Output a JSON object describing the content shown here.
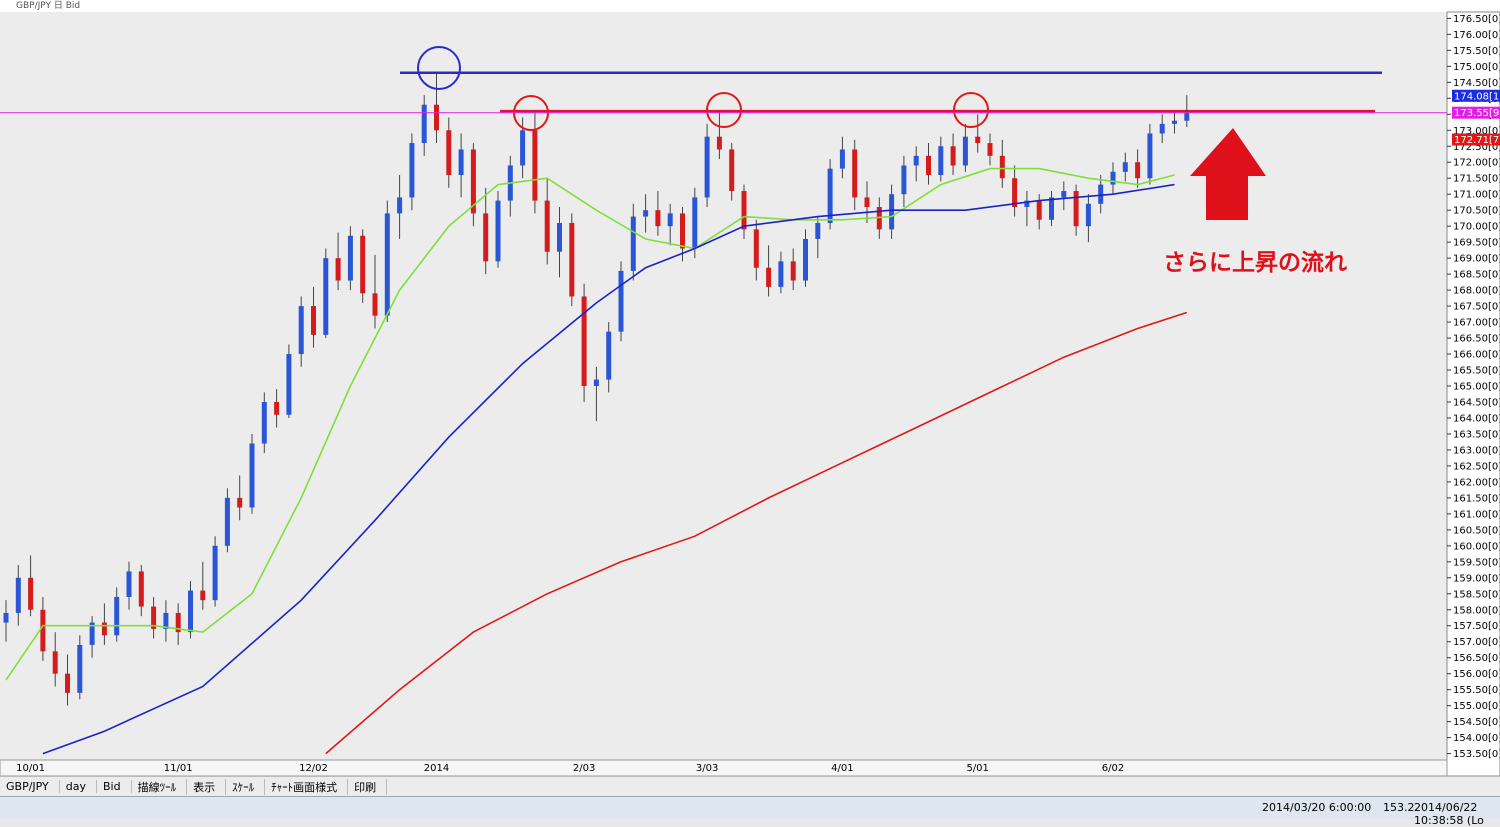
{
  "window_title": "GBP/JPY 日 Bid",
  "toolbar": [
    "GBP/JPY",
    "day",
    "Bid",
    "描線ﾂｰﾙ",
    "表示",
    "ｽｹｰﾙ",
    "ﾁｬｰﾄ画面様式",
    "印刷"
  ],
  "status": [
    "2014/03/20 6:00:00",
    "153.2",
    "2014/06/22 10:38:58 (Lo"
  ],
  "chart_data": {
    "type": "candlestick",
    "categories": [
      null,
      null,
      "10/01",
      null,
      null,
      null,
      null,
      null,
      null,
      null,
      null,
      null,
      null,
      null,
      "11/01",
      null,
      null,
      null,
      null,
      null,
      null,
      null,
      null,
      null,
      null,
      "12/02",
      null,
      null,
      null,
      null,
      null,
      null,
      null,
      null,
      null,
      "2014",
      null,
      null,
      null,
      null,
      null,
      null,
      null,
      null,
      null,
      null,
      null,
      "2/03",
      null,
      null,
      null,
      null,
      null,
      null,
      null,
      null,
      null,
      "3/03",
      null,
      null,
      null,
      null,
      null,
      null,
      null,
      null,
      null,
      null,
      "4/01",
      null,
      null,
      null,
      null,
      null,
      null,
      null,
      null,
      null,
      null,
      "5/01",
      null,
      null,
      null,
      null,
      null,
      null,
      null,
      null,
      null,
      null,
      "6/02",
      null,
      null,
      null,
      null,
      null,
      null
    ],
    "open": [
      157.6,
      157.9,
      159.0,
      158.0,
      156.7,
      156.0,
      155.4,
      156.9,
      157.6,
      157.2,
      158.4,
      159.2,
      158.1,
      157.4,
      157.9,
      157.3,
      158.6,
      158.3,
      160.0,
      161.5,
      161.2,
      163.2,
      164.5,
      164.1,
      166.0,
      167.5,
      166.6,
      169.0,
      168.3,
      169.7,
      167.9,
      167.2,
      170.4,
      170.9,
      172.6,
      173.8,
      173.0,
      171.6,
      172.4,
      170.4,
      168.9,
      170.8,
      171.9,
      173.0,
      170.8,
      169.2,
      170.1,
      167.8,
      165.0,
      165.2,
      166.7,
      168.6,
      170.3,
      170.5,
      170.0,
      170.4,
      169.3,
      170.9,
      172.8,
      172.4,
      171.1,
      169.9,
      168.7,
      168.1,
      168.9,
      168.3,
      169.6,
      170.1,
      171.8,
      172.4,
      170.9,
      170.6,
      169.9,
      171.0,
      171.9,
      172.2,
      171.6,
      172.5,
      171.9,
      172.8,
      172.6,
      172.2,
      171.5,
      170.6,
      170.8,
      170.2,
      170.9,
      171.1,
      170.0,
      170.7,
      171.3,
      171.7,
      172.0,
      171.5,
      172.9,
      173.2,
      173.3
    ],
    "high": [
      158.3,
      159.4,
      159.7,
      158.4,
      157.3,
      156.6,
      157.2,
      157.8,
      158.2,
      158.7,
      159.5,
      159.4,
      158.4,
      158.3,
      158.2,
      158.9,
      159.5,
      160.3,
      161.8,
      162.2,
      163.5,
      164.8,
      164.9,
      166.3,
      167.8,
      168.1,
      169.3,
      169.8,
      170.0,
      169.9,
      169.1,
      170.8,
      171.6,
      172.9,
      174.1,
      174.8,
      173.4,
      172.9,
      172.6,
      171.2,
      171.1,
      172.2,
      173.4,
      173.6,
      171.5,
      170.6,
      170.4,
      168.2,
      165.6,
      167.0,
      168.9,
      170.7,
      171.0,
      171.1,
      170.7,
      170.6,
      171.2,
      173.2,
      173.6,
      172.6,
      171.3,
      170.2,
      169.4,
      169.2,
      169.3,
      169.9,
      170.3,
      172.1,
      172.8,
      172.7,
      171.4,
      170.9,
      171.3,
      172.2,
      172.5,
      172.6,
      172.8,
      172.9,
      173.2,
      173.5,
      172.9,
      172.7,
      171.9,
      171.1,
      171.0,
      171.1,
      171.4,
      171.3,
      171.0,
      171.6,
      172.0,
      172.3,
      172.4,
      173.2,
      173.5,
      173.6,
      174.1
    ],
    "low": [
      157.0,
      157.5,
      157.8,
      156.4,
      155.6,
      155.0,
      155.2,
      156.5,
      156.9,
      157.0,
      158.0,
      157.8,
      157.1,
      157.0,
      156.9,
      157.1,
      158.0,
      158.1,
      159.8,
      160.8,
      161.0,
      162.9,
      163.7,
      164.0,
      165.6,
      166.2,
      166.5,
      168.0,
      168.0,
      167.6,
      166.8,
      167.0,
      169.6,
      170.5,
      172.2,
      172.6,
      171.2,
      170.9,
      170.0,
      168.5,
      168.7,
      170.3,
      171.5,
      170.4,
      168.8,
      168.4,
      167.5,
      164.5,
      163.9,
      164.8,
      166.4,
      168.3,
      169.8,
      169.7,
      169.4,
      168.9,
      169.0,
      170.6,
      172.1,
      170.8,
      169.6,
      168.3,
      167.8,
      167.9,
      168.0,
      168.1,
      169.0,
      169.9,
      171.5,
      170.5,
      170.1,
      169.6,
      169.6,
      170.6,
      171.4,
      171.3,
      171.4,
      171.6,
      171.7,
      172.3,
      171.9,
      171.2,
      170.3,
      170.0,
      169.9,
      170.0,
      170.5,
      169.7,
      169.5,
      170.4,
      171.0,
      171.4,
      171.2,
      171.3,
      172.6,
      172.9,
      173.1
    ],
    "close": [
      157.9,
      159.0,
      158.0,
      156.7,
      156.0,
      155.4,
      156.9,
      157.6,
      157.2,
      158.4,
      159.2,
      158.1,
      157.4,
      157.9,
      157.3,
      158.6,
      158.3,
      160.0,
      161.5,
      161.2,
      163.2,
      164.5,
      164.1,
      166.0,
      167.5,
      166.6,
      169.0,
      168.3,
      169.7,
      167.9,
      167.2,
      170.4,
      170.9,
      172.6,
      173.8,
      173.0,
      171.6,
      172.4,
      170.4,
      168.9,
      170.8,
      171.9,
      173.0,
      170.8,
      169.2,
      170.1,
      167.8,
      165.0,
      165.2,
      166.7,
      168.6,
      170.3,
      170.5,
      170.0,
      170.4,
      169.3,
      170.9,
      172.8,
      172.4,
      171.1,
      169.9,
      168.7,
      168.1,
      168.9,
      168.3,
      169.6,
      170.1,
      171.8,
      172.4,
      170.9,
      170.6,
      169.9,
      171.0,
      171.9,
      172.2,
      171.6,
      172.5,
      171.9,
      172.8,
      172.6,
      172.2,
      171.5,
      170.6,
      170.8,
      170.2,
      170.9,
      171.1,
      170.0,
      170.7,
      171.3,
      171.7,
      172.0,
      171.5,
      172.9,
      173.2,
      173.3,
      173.55
    ],
    "up_color": "#2a56d6",
    "down_color": "#d41c1c",
    "series": [
      {
        "color": "#7ee03a",
        "x": [
          0,
          3,
          8,
          12,
          16,
          20,
          24,
          28,
          32,
          36,
          40,
          44,
          48,
          52,
          56,
          60,
          64,
          68,
          72,
          76,
          80,
          84,
          88,
          92,
          95
        ],
        "values": [
          155.8,
          157.5,
          157.5,
          157.5,
          157.3,
          158.5,
          161.5,
          165,
          168,
          170,
          171.3,
          171.5,
          170.5,
          169.6,
          169.3,
          170.3,
          170.2,
          170.2,
          170.3,
          171.3,
          171.8,
          171.8,
          171.5,
          171.3,
          171.6
        ]
      },
      {
        "color": "#1c22c8",
        "x": [
          3,
          8,
          16,
          24,
          30,
          36,
          42,
          48,
          52,
          56,
          60,
          66,
          72,
          78,
          84,
          90,
          95
        ],
        "values": [
          153.5,
          154.2,
          155.6,
          158.3,
          160.8,
          163.4,
          165.7,
          167.6,
          168.7,
          169.3,
          170.0,
          170.3,
          170.5,
          170.5,
          170.8,
          171.0,
          171.3
        ]
      },
      {
        "color": "#e01818",
        "x": [
          26,
          32,
          38,
          44,
          50,
          56,
          62,
          68,
          74,
          80,
          86,
          92,
          96
        ],
        "values": [
          153.5,
          155.5,
          157.3,
          158.5,
          159.5,
          160.3,
          161.5,
          162.6,
          163.7,
          164.8,
          165.9,
          166.8,
          167.3
        ]
      }
    ],
    "hlines": [
      {
        "value": 174.8,
        "color": "#2b2bc8"
      },
      {
        "value": 173.6,
        "color": "#e0103a"
      }
    ],
    "price_tags": [
      {
        "value": 174.08,
        "label": "174.08[1",
        "color": "#1a2ee0"
      },
      {
        "value": 173.55,
        "label": "173.55[9",
        "color": "#e020e0"
      },
      {
        "value": 172.71,
        "label": "172.71[7",
        "color": "#e01818"
      }
    ],
    "annotation": "さらに上昇の流れ",
    "ylim": [
      153.3,
      176.7
    ],
    "yticks": [
      {
        "value": 153.5,
        "label": "153.50[0]"
      },
      {
        "value": 154,
        "label": "154.00[0]"
      },
      {
        "value": 154.5,
        "label": "154.50[0]"
      },
      {
        "value": 155,
        "label": "155.00[0]"
      },
      {
        "value": 155.5,
        "label": "155.50[0]"
      },
      {
        "value": 156,
        "label": "156.00[0]"
      },
      {
        "value": 156.5,
        "label": "156.50[0]"
      },
      {
        "value": 157,
        "label": "157.00[0]"
      },
      {
        "value": 157.5,
        "label": "157.50[0]"
      },
      {
        "value": 158,
        "label": "158.00[0]"
      },
      {
        "value": 158.5,
        "label": "158.50[0]"
      },
      {
        "value": 159,
        "label": "159.00[0]"
      },
      {
        "value": 159.5,
        "label": "159.50[0]"
      },
      {
        "value": 160,
        "label": "160.00[0]"
      },
      {
        "value": 160.5,
        "label": "160.50[0]"
      },
      {
        "value": 161,
        "label": "161.00[0]"
      },
      {
        "value": 161.5,
        "label": "161.50[0]"
      },
      {
        "value": 162,
        "label": "162.00[0]"
      },
      {
        "value": 162.5,
        "label": "162.50[0]"
      },
      {
        "value": 163,
        "label": "163.00[0]"
      },
      {
        "value": 163.5,
        "label": "163.50[0]"
      },
      {
        "value": 164,
        "label": "164.00[0]"
      },
      {
        "value": 164.5,
        "label": "164.50[0]"
      },
      {
        "value": 165,
        "label": "165.00[0]"
      },
      {
        "value": 165.5,
        "label": "165.50[0]"
      },
      {
        "value": 166,
        "label": "166.00[0]"
      },
      {
        "value": 166.5,
        "label": "166.50[0]"
      },
      {
        "value": 167,
        "label": "167.00[0]"
      },
      {
        "value": 167.5,
        "label": "167.50[0]"
      },
      {
        "value": 168,
        "label": "168.00[0]"
      },
      {
        "value": 168.5,
        "label": "168.50[0]"
      },
      {
        "value": 169,
        "label": "169.00[0]"
      },
      {
        "value": 169.5,
        "label": "169.50[0]"
      },
      {
        "value": 170,
        "label": "170.00[0]"
      },
      {
        "value": 170.5,
        "label": "170.50[0]"
      },
      {
        "value": 171,
        "label": "171.00[0]"
      },
      {
        "value": 171.5,
        "label": "171.50[0]"
      },
      {
        "value": 172,
        "label": "172.00[0]"
      },
      {
        "value": 172.5,
        "label": "172.50[0]"
      },
      {
        "value": 173,
        "label": "173.00[0]"
      },
      {
        "value": 173.5,
        "label": "173.50[0]"
      },
      {
        "value": 174,
        "label": "174.00[0]"
      },
      {
        "value": 174.5,
        "label": "174.50[0]"
      },
      {
        "value": 175,
        "label": "175.00[0]"
      },
      {
        "value": 175.5,
        "label": "175.50[0]"
      },
      {
        "value": 176,
        "label": "176.00[0]"
      },
      {
        "value": 176.5,
        "label": "176.50[0]"
      }
    ]
  }
}
